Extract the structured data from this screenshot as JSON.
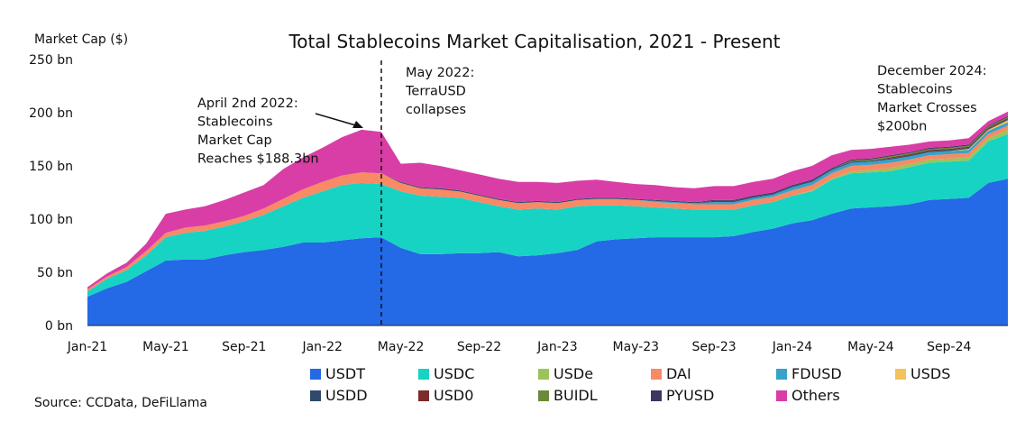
{
  "colors": {
    "USDT": "#2469e6",
    "USDC": "#17d3c3",
    "USDe": "#9cc35a",
    "DAI": "#f88a66",
    "FDUSD": "#37a3c8",
    "USDS": "#f3c25a",
    "USDD": "#2f4a6b",
    "USD0": "#7c2c2a",
    "BUIDL": "#6a8a3a",
    "PYUSD": "#3e3560",
    "Others": "#d93ea6"
  },
  "chart_data": {
    "type": "area",
    "title": "Total Stablecoins Market Capitalisation, 2021 - Present",
    "ylabel": "Market Cap ($)",
    "xlabel": "",
    "ylim": [
      0,
      250
    ],
    "xlim": [
      "2021-01",
      "2024-12"
    ],
    "y_ticks": [
      "0 bn",
      "50 bn",
      "100 bn",
      "150 bn",
      "200 bn",
      "250 bn"
    ],
    "x_ticks": [
      "Jan-21",
      "May-21",
      "Sep-21",
      "Jan-22",
      "May-22",
      "Sep-22",
      "Jan-23",
      "May-23",
      "Sep-23",
      "Jan-24",
      "May-24",
      "Sep-24"
    ],
    "grid": false,
    "stacked": true,
    "legend_position": "bottom",
    "source": "Source: CCData, DeFiLlama",
    "x": [
      "2021-01",
      "2021-02",
      "2021-03",
      "2021-04",
      "2021-05",
      "2021-06",
      "2021-07",
      "2021-08",
      "2021-09",
      "2021-10",
      "2021-11",
      "2021-12",
      "2022-01",
      "2022-02",
      "2022-03",
      "2022-04",
      "2022-05",
      "2022-06",
      "2022-07",
      "2022-08",
      "2022-09",
      "2022-10",
      "2022-11",
      "2022-12",
      "2023-01",
      "2023-02",
      "2023-03",
      "2023-04",
      "2023-05",
      "2023-06",
      "2023-07",
      "2023-08",
      "2023-09",
      "2023-10",
      "2023-11",
      "2023-12",
      "2024-01",
      "2024-02",
      "2024-03",
      "2024-04",
      "2024-05",
      "2024-06",
      "2024-07",
      "2024-08",
      "2024-09",
      "2024-10",
      "2024-11",
      "2024-12"
    ],
    "series": [
      {
        "name": "USDT",
        "values": [
          27,
          35,
          41,
          51,
          61,
          62,
          62,
          66,
          69,
          71,
          74,
          78,
          78,
          80,
          82,
          83,
          73,
          67,
          67,
          68,
          68,
          69,
          65,
          66,
          68,
          71,
          79,
          81,
          82,
          83,
          83,
          83,
          83,
          84,
          88,
          91,
          96,
          99,
          105,
          110,
          111,
          112,
          114,
          118,
          119,
          120,
          134,
          138
        ]
      },
      {
        "name": "USDC",
        "values": [
          5,
          9,
          11,
          15,
          22,
          25,
          27,
          27,
          29,
          33,
          38,
          42,
          48,
          52,
          52,
          50,
          53,
          55,
          54,
          52,
          48,
          43,
          44,
          44,
          41,
          41,
          34,
          32,
          30,
          28,
          27,
          26,
          26,
          25,
          25,
          25,
          26,
          27,
          32,
          33,
          33,
          33,
          35,
          35,
          35,
          35,
          39,
          42
        ]
      },
      {
        "name": "USDe",
        "values": [
          0,
          0,
          0,
          0,
          0,
          0,
          0,
          0,
          0,
          0,
          0,
          0,
          0,
          0,
          0,
          0,
          0,
          0,
          0,
          0,
          0,
          0,
          0,
          0,
          0,
          0,
          0,
          0,
          0,
          0,
          0,
          0,
          0,
          0,
          0,
          0,
          0,
          1,
          1,
          2,
          2,
          3,
          3,
          3,
          3,
          3,
          3,
          4
        ]
      },
      {
        "name": "DAI",
        "values": [
          2,
          2,
          3,
          4,
          4,
          5,
          5,
          5,
          5,
          6,
          7,
          8,
          9,
          9,
          10,
          10,
          8,
          7,
          7,
          6,
          6,
          6,
          6,
          6,
          6,
          6,
          6,
          6,
          6,
          5,
          5,
          5,
          5,
          5,
          5,
          5,
          5,
          5,
          5,
          5,
          5,
          5,
          4,
          4,
          4,
          4,
          4,
          4
        ]
      },
      {
        "name": "FDUSD",
        "values": [
          0,
          0,
          0,
          0,
          0,
          0,
          0,
          0,
          0,
          0,
          0,
          0,
          0,
          0,
          0,
          0,
          0,
          0,
          0,
          0,
          0,
          0,
          0,
          0,
          0,
          0,
          0,
          0,
          0,
          1,
          1,
          1,
          2,
          2,
          2,
          2,
          3,
          3,
          3,
          3,
          3,
          3,
          3,
          3,
          3,
          3,
          3,
          3
        ]
      },
      {
        "name": "USDS",
        "values": [
          0,
          0,
          0,
          0,
          0,
          0,
          0,
          0,
          0,
          0,
          0,
          0,
          0,
          0,
          0,
          0,
          0,
          0,
          0,
          0,
          0,
          0,
          0,
          0,
          0,
          0,
          0,
          0,
          0,
          0,
          0,
          0,
          0,
          0,
          0,
          0,
          0,
          0,
          0,
          0,
          0,
          0,
          0,
          0,
          0,
          1,
          1,
          2
        ]
      },
      {
        "name": "USDD",
        "values": [
          0,
          0,
          0,
          0,
          0,
          0,
          0,
          0,
          0,
          0,
          0,
          0,
          0,
          0,
          0,
          0,
          1,
          1,
          1,
          1,
          1,
          1,
          1,
          1,
          1,
          1,
          1,
          1,
          1,
          1,
          1,
          1,
          1,
          1,
          1,
          1,
          1,
          1,
          1,
          1,
          1,
          1,
          1,
          1,
          1,
          1,
          1,
          1
        ]
      },
      {
        "name": "USD0",
        "values": [
          0,
          0,
          0,
          0,
          0,
          0,
          0,
          0,
          0,
          0,
          0,
          0,
          0,
          0,
          0,
          0,
          0,
          0,
          0,
          0,
          0,
          0,
          0,
          0,
          0,
          0,
          0,
          0,
          0,
          0,
          0,
          0,
          0,
          0,
          0,
          0,
          0,
          0,
          0,
          0,
          0,
          1,
          1,
          1,
          1,
          1,
          1,
          1
        ]
      },
      {
        "name": "BUIDL",
        "values": [
          0,
          0,
          0,
          0,
          0,
          0,
          0,
          0,
          0,
          0,
          0,
          0,
          0,
          0,
          0,
          0,
          0,
          0,
          0,
          0,
          0,
          0,
          0,
          0,
          0,
          0,
          0,
          0,
          0,
          0,
          0,
          0,
          0,
          0,
          0,
          0,
          0,
          0,
          0,
          1,
          1,
          1,
          1,
          1,
          1,
          1,
          1,
          1
        ]
      },
      {
        "name": "PYUSD",
        "values": [
          0,
          0,
          0,
          0,
          0,
          0,
          0,
          0,
          0,
          0,
          0,
          0,
          0,
          0,
          0,
          0,
          0,
          0,
          0,
          0,
          0,
          0,
          0,
          0,
          0,
          0,
          0,
          0,
          0,
          0,
          0,
          0,
          1,
          1,
          1,
          1,
          1,
          1,
          1,
          1,
          1,
          1,
          1,
          1,
          1,
          1,
          1,
          1
        ]
      },
      {
        "name": "Others",
        "values": [
          2,
          3,
          4,
          7,
          18,
          17,
          18,
          20,
          22,
          22,
          28,
          30,
          32,
          36,
          40,
          39,
          17,
          23,
          21,
          19,
          19,
          19,
          19,
          18,
          18,
          17,
          17,
          15,
          14,
          14,
          13,
          13,
          13,
          13,
          13,
          13,
          13,
          13,
          12,
          9,
          9,
          8,
          7,
          6,
          6,
          6,
          4,
          4
        ]
      }
    ],
    "annotations": [
      {
        "text": [
          "April 2nd 2022:",
          "Stablecoins",
          "Market Cap",
          "Reaches $188.3bn"
        ]
      },
      {
        "text": [
          "May 2022:",
          "TerraUSD",
          "collapses"
        ]
      },
      {
        "text": [
          "December 2024:",
          "Stablecoins",
          "Market Crosses",
          "$200bn"
        ]
      }
    ]
  }
}
